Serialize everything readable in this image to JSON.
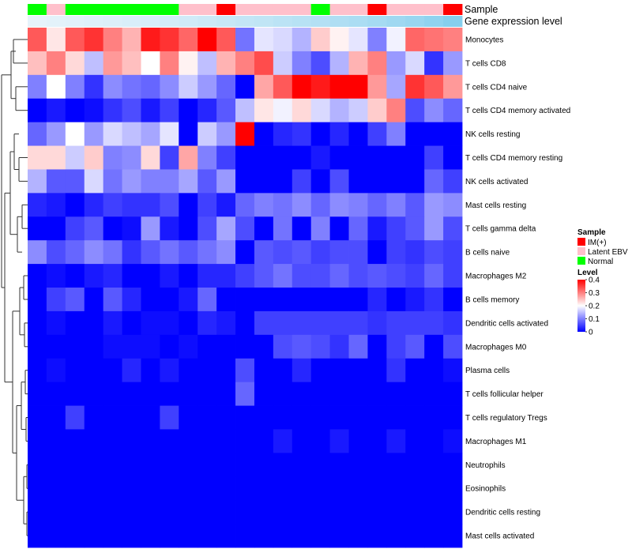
{
  "chart_data": {
    "type": "heatmap",
    "annotation_labels": [
      "Sample",
      "Gene expression level"
    ],
    "row_labels": [
      "Monocytes",
      "T cells CD8",
      "T cells CD4 naive",
      "T cells CD4 memory activated",
      "NK cells resting",
      "T cells CD4 memory resting",
      "NK cells activated",
      "Mast cells resting",
      "T cells gamma delta",
      "B cells naive",
      "Macrophages M2",
      "B cells memory",
      "Dendritic cells activated",
      "Macrophages M0",
      "Plasma cells",
      "T cells follicular helper",
      "T cells regulatory  Tregs",
      "Macrophages M1",
      "Neutrophils",
      "Eosinophils",
      "Dendritic cells resting",
      "Mast cells activated"
    ],
    "sample_groups": [
      "Normal",
      "Latent EBV",
      "Normal",
      "Normal",
      "Normal",
      "Normal",
      "Normal",
      "Normal",
      "Latent EBV",
      "Latent EBV",
      "IM(+)",
      "Latent EBV",
      "Latent EBV",
      "Latent EBV",
      "Latent EBV",
      "Normal",
      "Latent EBV",
      "Latent EBV",
      "IM(+)",
      "Latent EBV",
      "Latent EBV",
      "Latent EBV",
      "IM(+)"
    ],
    "expression_level": [
      0.02,
      0.04,
      0.06,
      0.08,
      0.1,
      0.12,
      0.14,
      0.17,
      0.2,
      0.23,
      0.27,
      0.3,
      0.33,
      0.37,
      0.4,
      0.43,
      0.47,
      0.5,
      0.55,
      0.6,
      0.65,
      0.72,
      0.8
    ],
    "values": [
      [
        0.33,
        0.22,
        0.33,
        0.36,
        0.3,
        0.26,
        0.38,
        0.36,
        0.32,
        0.4,
        0.33,
        0.09,
        0.18,
        0.17,
        0.14,
        0.24,
        0.21,
        0.18,
        0.1,
        0.19,
        0.32,
        0.31,
        0.3
      ],
      [
        0.25,
        0.3,
        0.23,
        0.15,
        0.28,
        0.25,
        0.2,
        0.3,
        0.21,
        0.15,
        0.26,
        0.3,
        0.34,
        0.16,
        0.1,
        0.06,
        0.14,
        0.26,
        0.3,
        0.12,
        0.17,
        0.04,
        0.12
      ],
      [
        0.1,
        0.2,
        0.1,
        0.04,
        0.11,
        0.09,
        0.08,
        0.11,
        0.16,
        0.12,
        0.08,
        0.0,
        0.27,
        0.33,
        0.42,
        0.38,
        0.42,
        0.42,
        0.28,
        0.13,
        0.36,
        0.33,
        0.28
      ],
      [
        0.0,
        0.02,
        0.0,
        0.01,
        0.04,
        0.06,
        0.02,
        0.05,
        0.0,
        0.03,
        0.07,
        0.15,
        0.22,
        0.19,
        0.23,
        0.17,
        0.14,
        0.16,
        0.24,
        0.3,
        0.06,
        0.11,
        0.08
      ],
      [
        0.08,
        0.12,
        0.2,
        0.12,
        0.17,
        0.15,
        0.13,
        0.18,
        0.0,
        0.16,
        0.12,
        0.42,
        0.0,
        0.03,
        0.04,
        0.0,
        0.03,
        0.0,
        0.05,
        0.1,
        0.0,
        0.0,
        0.0
      ],
      [
        0.23,
        0.23,
        0.16,
        0.24,
        0.1,
        0.11,
        0.23,
        0.05,
        0.27,
        0.1,
        0.05,
        0.0,
        0.0,
        0.0,
        0.0,
        0.02,
        0.0,
        0.0,
        0.0,
        0.0,
        0.0,
        0.05,
        0.0
      ],
      [
        0.14,
        0.07,
        0.07,
        0.17,
        0.09,
        0.12,
        0.1,
        0.1,
        0.13,
        0.07,
        0.12,
        0.0,
        0.0,
        0.0,
        0.05,
        0.0,
        0.06,
        0.0,
        0.0,
        0.0,
        0.0,
        0.08,
        0.05
      ],
      [
        0.03,
        0.02,
        0.0,
        0.03,
        0.05,
        0.04,
        0.04,
        0.06,
        0.0,
        0.05,
        0.02,
        0.08,
        0.1,
        0.09,
        0.11,
        0.08,
        0.11,
        0.1,
        0.08,
        0.1,
        0.07,
        0.12,
        0.11
      ],
      [
        0.0,
        0.0,
        0.05,
        0.07,
        0.0,
        0.01,
        0.12,
        0.02,
        0.0,
        0.06,
        0.13,
        0.06,
        0.0,
        0.09,
        0.0,
        0.1,
        0.0,
        0.08,
        0.02,
        0.05,
        0.07,
        0.12,
        0.06
      ],
      [
        0.11,
        0.06,
        0.08,
        0.11,
        0.09,
        0.04,
        0.07,
        0.09,
        0.07,
        0.09,
        0.11,
        0.0,
        0.07,
        0.06,
        0.07,
        0.05,
        0.06,
        0.06,
        0.0,
        0.05,
        0.04,
        0.06,
        0.05
      ],
      [
        0.0,
        0.01,
        0.0,
        0.02,
        0.03,
        0.0,
        0.0,
        0.02,
        0.0,
        0.03,
        0.03,
        0.05,
        0.07,
        0.09,
        0.06,
        0.06,
        0.08,
        0.06,
        0.07,
        0.06,
        0.05,
        0.08,
        0.05
      ],
      [
        0.0,
        0.05,
        0.07,
        0.0,
        0.07,
        0.03,
        0.0,
        0.0,
        0.02,
        0.08,
        0.0,
        0.0,
        0.0,
        0.0,
        0.0,
        0.0,
        0.0,
        0.0,
        0.03,
        0.0,
        0.02,
        0.04,
        0.0
      ],
      [
        0.0,
        0.01,
        0.0,
        0.0,
        0.02,
        0.0,
        0.01,
        0.01,
        0.0,
        0.03,
        0.02,
        0.0,
        0.05,
        0.05,
        0.05,
        0.05,
        0.05,
        0.05,
        0.04,
        0.05,
        0.05,
        0.05,
        0.04
      ],
      [
        0.0,
        0.0,
        0.0,
        0.0,
        0.01,
        0.01,
        0.01,
        0.0,
        0.01,
        0.0,
        0.0,
        0.0,
        0.0,
        0.06,
        0.07,
        0.06,
        0.04,
        0.08,
        0.0,
        0.05,
        0.07,
        0.0,
        0.06
      ],
      [
        0.0,
        0.01,
        0.0,
        0.0,
        0.0,
        0.03,
        0.0,
        0.02,
        0.0,
        0.0,
        0.0,
        0.06,
        0.0,
        0.0,
        0.03,
        0.0,
        0.0,
        0.0,
        0.0,
        0.04,
        0.0,
        0.0,
        0.01
      ],
      [
        0.0,
        0.0,
        0.0,
        0.0,
        0.0,
        0.0,
        0.0,
        0.0,
        0.0,
        0.0,
        0.0,
        0.08,
        0.0,
        0.0,
        0.0,
        0.0,
        0.0,
        0.0,
        0.0,
        0.0,
        0.0,
        0.0,
        0.0
      ],
      [
        0.0,
        0.0,
        0.05,
        0.0,
        0.0,
        0.0,
        0.0,
        0.05,
        0.0,
        0.0,
        0.0,
        0.0,
        0.0,
        0.0,
        0.0,
        0.0,
        0.0,
        0.0,
        0.0,
        0.0,
        0.0,
        0.0,
        0.0
      ],
      [
        0.0,
        0.0,
        0.0,
        0.0,
        0.0,
        0.0,
        0.0,
        0.0,
        0.0,
        0.0,
        0.0,
        0.0,
        0.0,
        0.02,
        0.0,
        0.0,
        0.02,
        0.0,
        0.0,
        0.02,
        0.0,
        0.0,
        0.01
      ],
      [
        0.0,
        0.0,
        0.0,
        0.0,
        0.0,
        0.0,
        0.0,
        0.0,
        0.0,
        0.0,
        0.0,
        0.0,
        0.0,
        0.0,
        0.0,
        0.0,
        0.0,
        0.0,
        0.0,
        0.0,
        0.0,
        0.0,
        0.0
      ],
      [
        0.0,
        0.0,
        0.0,
        0.0,
        0.0,
        0.0,
        0.0,
        0.0,
        0.0,
        0.0,
        0.0,
        0.0,
        0.0,
        0.0,
        0.0,
        0.0,
        0.0,
        0.0,
        0.0,
        0.0,
        0.0,
        0.0,
        0.0
      ],
      [
        0.0,
        0.0,
        0.0,
        0.0,
        0.0,
        0.0,
        0.0,
        0.0,
        0.0,
        0.0,
        0.0,
        0.0,
        0.0,
        0.0,
        0.0,
        0.0,
        0.0,
        0.0,
        0.0,
        0.0,
        0.0,
        0.0,
        0.0
      ],
      [
        0.0,
        0.0,
        0.0,
        0.0,
        0.0,
        0.0,
        0.0,
        0.0,
        0.0,
        0.0,
        0.0,
        0.0,
        0.0,
        0.0,
        0.0,
        0.0,
        0.0,
        0.0,
        0.0,
        0.0,
        0.0,
        0.0,
        0.0
      ]
    ],
    "color_scale": {
      "min": 0,
      "mid": 0.2,
      "max": 0.4,
      "low": "#0000ff",
      "midcolor": "#ffffff",
      "high": "#ff0000"
    },
    "legend": {
      "placement": "right",
      "sample_title": "Sample",
      "sample_entries": [
        {
          "label": "IM(+)",
          "color": "#ff0000"
        },
        {
          "label": "Latent EBV",
          "color": "#ffc0cb"
        },
        {
          "label": "Normal",
          "color": "#00ff00"
        }
      ],
      "level_title": "Level",
      "level_ticks": [
        "0.4",
        "0.3",
        "0.2",
        "0.1",
        "0"
      ]
    },
    "expression_colors": {
      "low": "#e8f4fb",
      "high": "#6ec6ea"
    },
    "row_dendrogram": true,
    "grid": false
  }
}
